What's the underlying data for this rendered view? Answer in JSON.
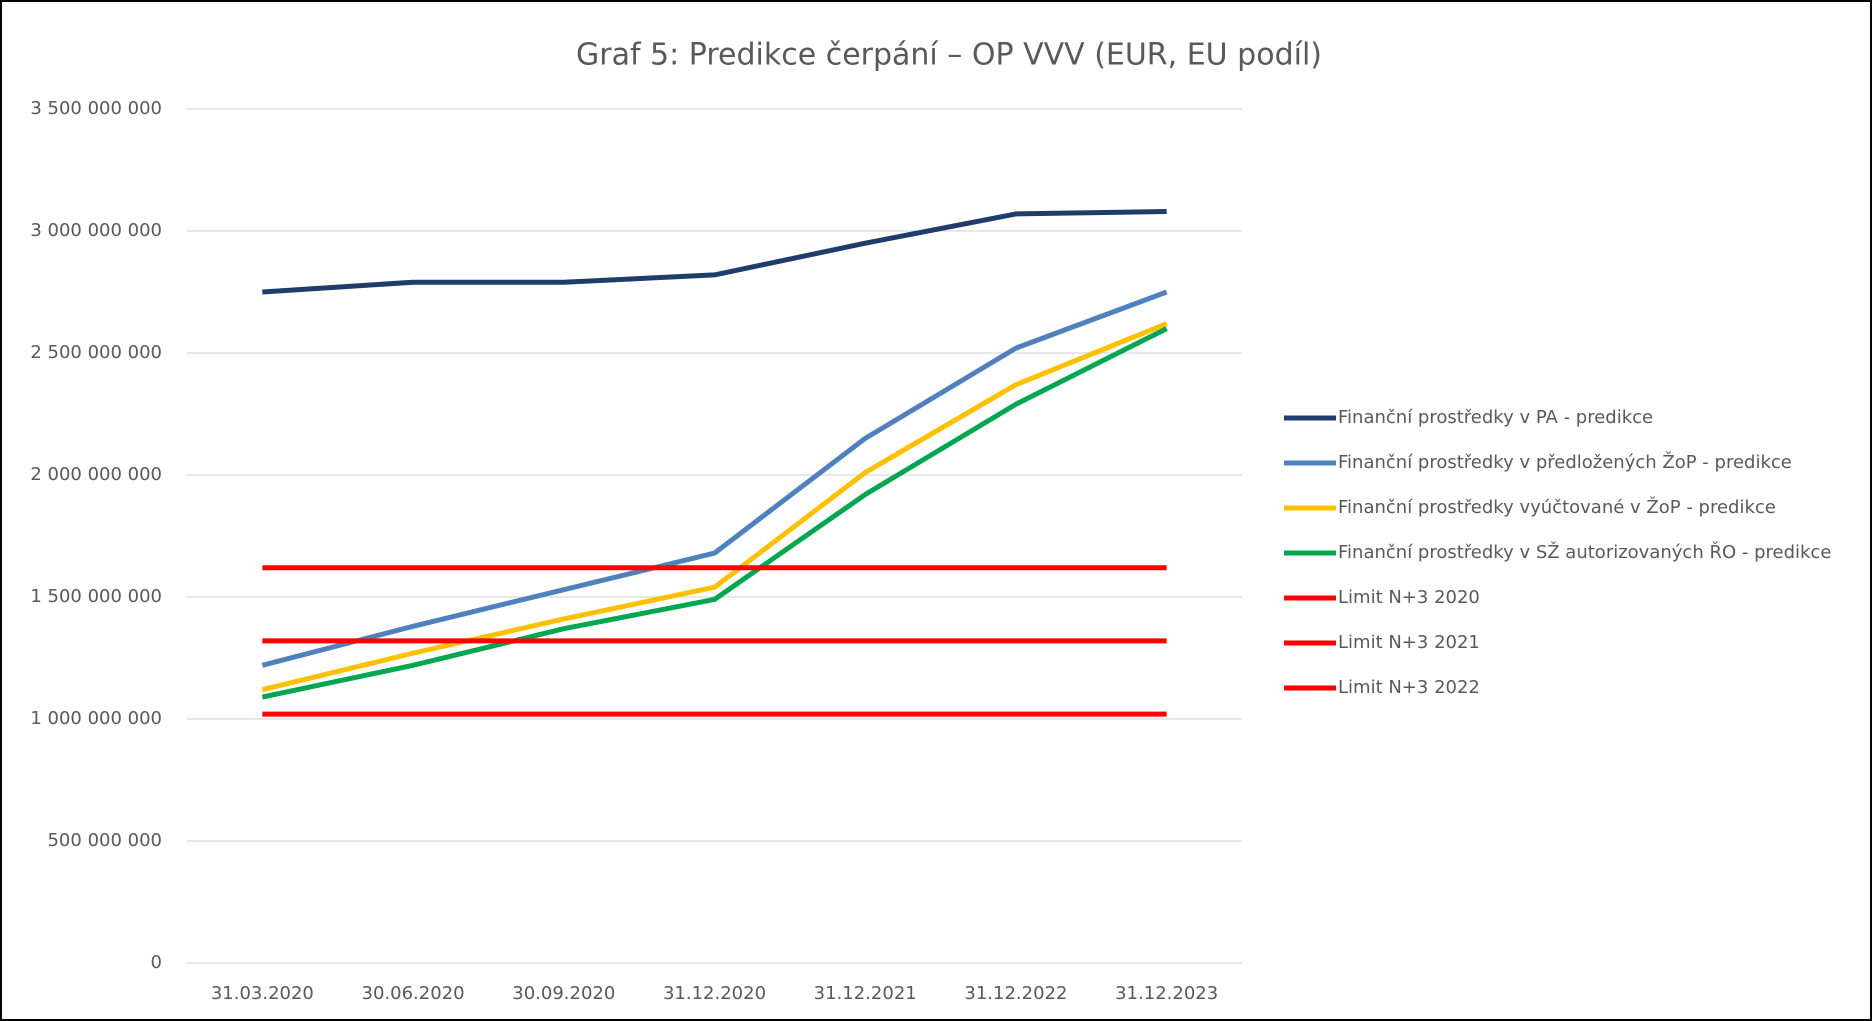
{
  "chart_data": {
    "type": "line",
    "title": "Graf 5: Predikce čerpání – OP VVV (EUR, EU podíl)",
    "categories": [
      "31.03.2020",
      "30.06.2020",
      "30.09.2020",
      "31.12.2020",
      "31.12.2021",
      "31.12.2022",
      "31.12.2023"
    ],
    "series": [
      {
        "name": "Finanční prostředky v PA - predikce",
        "color": "#1f3d6b",
        "values": [
          2750000000,
          2790000000,
          2790000000,
          2820000000,
          2950000000,
          3070000000,
          3080000000
        ]
      },
      {
        "name": "Finanční prostředky v předložených ŽoP - predikce",
        "color": "#4f81bd",
        "values": [
          1220000000,
          1380000000,
          1530000000,
          1680000000,
          2150000000,
          2520000000,
          2750000000
        ]
      },
      {
        "name": "Finanční prostředky vyúčtované v ŽoP - predikce",
        "color": "#ffc000",
        "values": [
          1120000000,
          1270000000,
          1410000000,
          1540000000,
          2010000000,
          2370000000,
          2620000000
        ]
      },
      {
        "name": "Finanční prostředky v SŽ autorizovaných ŘO - predikce",
        "color": "#00a650",
        "values": [
          1090000000,
          1220000000,
          1370000000,
          1490000000,
          1920000000,
          2290000000,
          2600000000
        ]
      },
      {
        "name": "Limit N+3 2020",
        "color": "#ff0000",
        "values": [
          1620000000,
          1620000000,
          1620000000,
          1620000000,
          1620000000,
          1620000000,
          1620000000
        ]
      },
      {
        "name": "Limit N+3 2021",
        "color": "#ff0000",
        "values": [
          1320000000,
          1320000000,
          1320000000,
          1320000000,
          1320000000,
          1320000000,
          1320000000
        ]
      },
      {
        "name": "Limit N+3 2022",
        "color": "#ff0000",
        "values": [
          1020000000,
          1020000000,
          1020000000,
          1020000000,
          1020000000,
          1020000000,
          1020000000
        ]
      }
    ],
    "ylim": [
      0,
      3500000000
    ],
    "yticks": [
      0,
      {
        "value": 500000000,
        "label": "500 000 000"
      },
      {
        "value": 1000000000,
        "label": "1 000 000 000"
      },
      {
        "value": 1500000000,
        "label": "1 500 000 000"
      },
      {
        "value": 2000000000,
        "label": "2 000 000 000"
      },
      {
        "value": 2500000000,
        "label": "2 500 000 000"
      },
      {
        "value": 3000000000,
        "label": "3 000 000 000"
      },
      {
        "value": 3500000000,
        "label": "3 500 000 000"
      }
    ],
    "grid": true,
    "legend": "right"
  }
}
